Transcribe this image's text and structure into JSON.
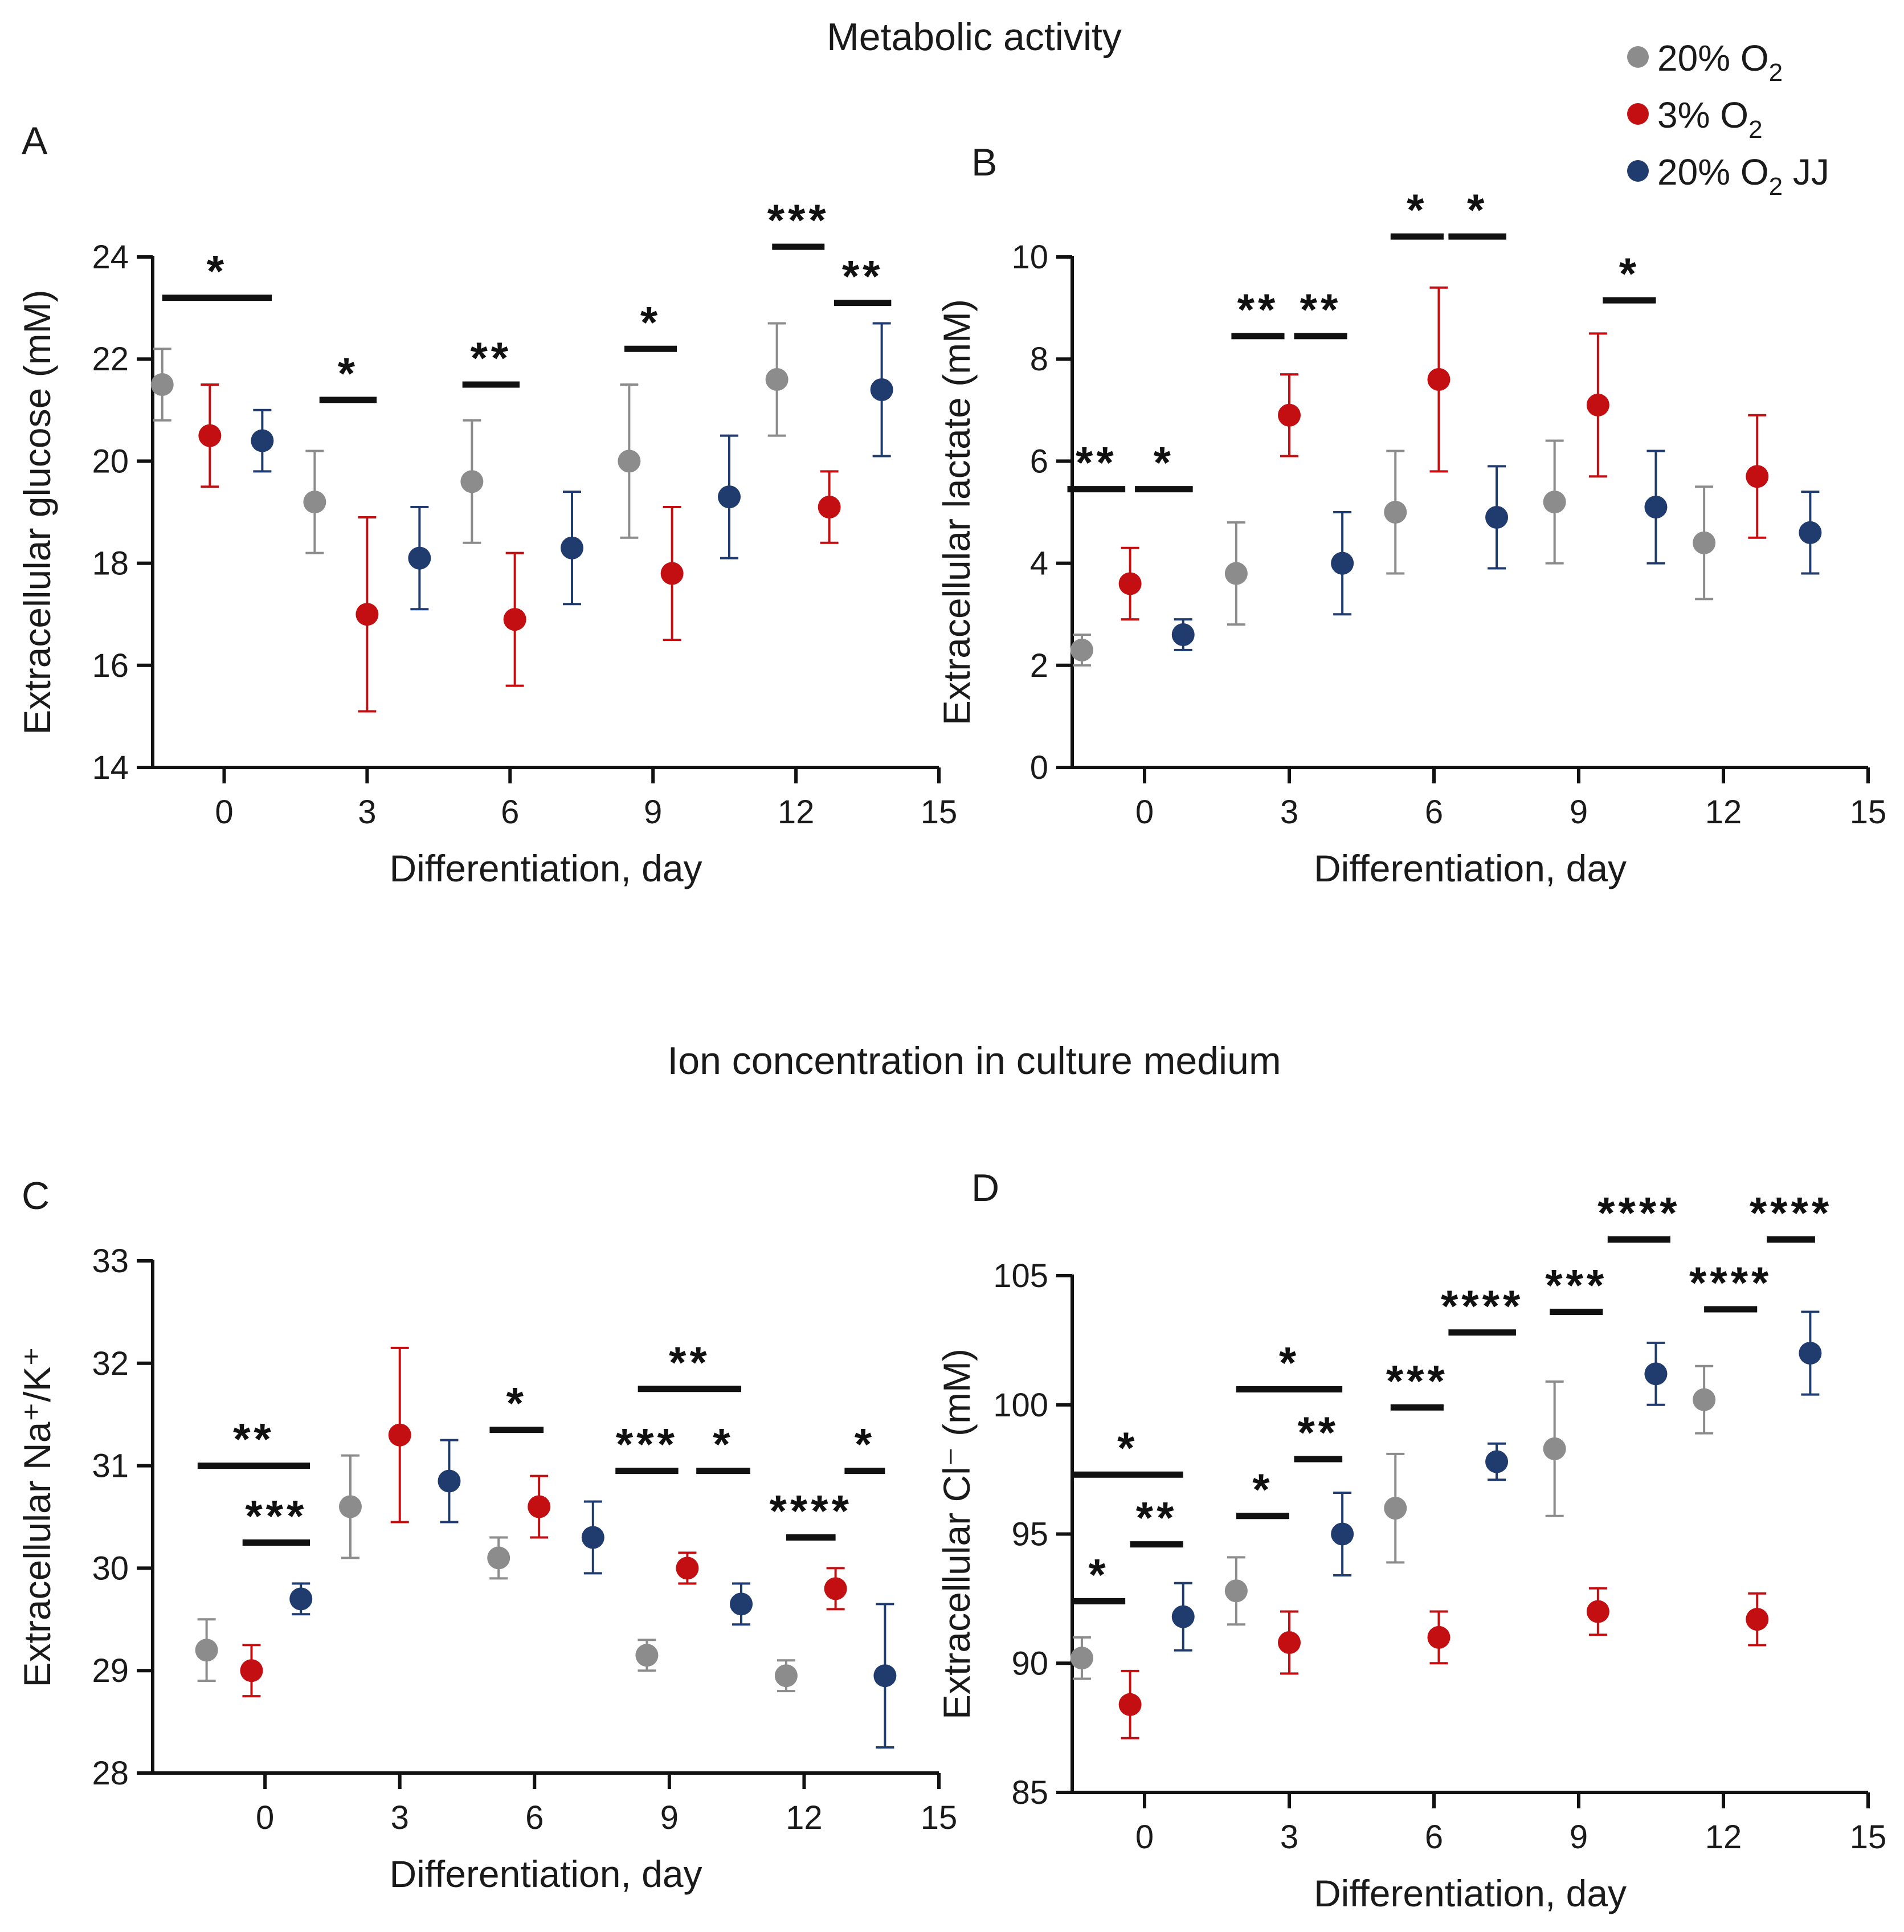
{
  "section_titles": {
    "metabolic": "Metabolic activity",
    "ion": "Ion concentration in culture medium"
  },
  "legend": [
    {
      "label": "20% O",
      "sub": "2",
      "suffix": "",
      "color": "#8c8c8c"
    },
    {
      "label": "3% O",
      "sub": "2",
      "suffix": "",
      "color": "#c40f12"
    },
    {
      "label": "20% O",
      "sub": "2",
      "suffix": " JJ",
      "color": "#203b6e"
    }
  ],
  "chart_data": [
    {
      "type": "scatter",
      "panel": "A",
      "xlabel": "Differentiation, day",
      "ylabel": "Extracellular glucose (mM)",
      "xlim": [
        -1.5,
        15
      ],
      "ylim": [
        14,
        24
      ],
      "xticks": [
        "0",
        "3",
        "6",
        "9",
        "12",
        "15"
      ],
      "yticks": [
        "14",
        "16",
        "18",
        "20",
        "22",
        "24"
      ],
      "series": [
        {
          "name": "20% O2",
          "color": "#8c8c8c",
          "x": [
            -1.3,
            1.9,
            5.2,
            8.5,
            11.6
          ],
          "y": [
            21.5,
            19.2,
            19.6,
            20.0,
            21.6
          ],
          "err": [
            0.7,
            1.0,
            1.2,
            1.5,
            1.1
          ]
        },
        {
          "name": "3% O2",
          "color": "#c40f12",
          "x": [
            -0.3,
            3.0,
            6.1,
            9.4,
            12.7
          ],
          "y": [
            20.5,
            17.0,
            16.9,
            17.8,
            19.1
          ],
          "err": [
            1.0,
            1.9,
            1.3,
            1.3,
            0.7
          ]
        },
        {
          "name": "20% O2 JJ",
          "color": "#203b6e",
          "x": [
            0.8,
            4.1,
            7.3,
            10.6,
            13.8
          ],
          "y": [
            20.4,
            18.1,
            18.3,
            19.3,
            21.4
          ],
          "err": [
            0.6,
            1.0,
            1.1,
            1.2,
            1.3
          ]
        }
      ],
      "significance": [
        {
          "x1": -1.3,
          "x2": 1.0,
          "y": 23.2,
          "label": "*"
        },
        {
          "x1": 2.0,
          "x2": 3.2,
          "y": 21.2,
          "label": "*"
        },
        {
          "x1": 5.0,
          "x2": 6.2,
          "y": 21.5,
          "label": "**"
        },
        {
          "x1": 8.4,
          "x2": 9.5,
          "y": 22.2,
          "label": "*"
        },
        {
          "x1": 11.5,
          "x2": 12.6,
          "y": 24.2,
          "label": "***"
        },
        {
          "x1": 12.8,
          "x2": 14.0,
          "y": 23.1,
          "label": "**"
        }
      ]
    },
    {
      "type": "scatter",
      "panel": "B",
      "xlabel": "Differentiation, day",
      "ylabel": "Extracellular lactate (mM)",
      "xlim": [
        -1.5,
        15
      ],
      "ylim": [
        0,
        10
      ],
      "xticks": [
        "0",
        "3",
        "6",
        "9",
        "12",
        "15"
      ],
      "yticks": [
        "0",
        "2",
        "4",
        "6",
        "8",
        "10"
      ],
      "series": [
        {
          "name": "20% O2",
          "color": "#8c8c8c",
          "x": [
            -1.3,
            1.9,
            5.2,
            8.5,
            11.6
          ],
          "y": [
            2.3,
            3.8,
            5.0,
            5.2,
            4.4
          ],
          "err": [
            0.3,
            1.0,
            1.2,
            1.2,
            1.1
          ]
        },
        {
          "name": "3% O2",
          "color": "#c40f12",
          "x": [
            -0.3,
            3.0,
            6.1,
            9.4,
            12.7
          ],
          "y": [
            3.6,
            6.9,
            7.6,
            7.1,
            5.7
          ],
          "err": [
            0.7,
            0.8,
            1.8,
            1.4,
            1.2
          ]
        },
        {
          "name": "20% O2 JJ",
          "color": "#203b6e",
          "x": [
            0.8,
            4.1,
            7.3,
            10.6,
            13.8
          ],
          "y": [
            2.6,
            4.0,
            4.9,
            5.1,
            4.6
          ],
          "err": [
            0.3,
            1.0,
            1.0,
            1.1,
            0.8
          ]
        }
      ],
      "significance": [
        {
          "x1": -1.6,
          "x2": -0.4,
          "y": 5.45,
          "label": "**"
        },
        {
          "x1": -0.2,
          "x2": 1.0,
          "y": 5.45,
          "label": "*"
        },
        {
          "x1": 1.8,
          "x2": 2.9,
          "y": 8.45,
          "label": "**"
        },
        {
          "x1": 3.1,
          "x2": 4.2,
          "y": 8.45,
          "label": "**"
        },
        {
          "x1": 5.1,
          "x2": 6.2,
          "y": 10.4,
          "label": "*"
        },
        {
          "x1": 6.3,
          "x2": 7.5,
          "y": 10.4,
          "label": "*"
        },
        {
          "x1": 9.5,
          "x2": 10.6,
          "y": 9.15,
          "label": "*"
        }
      ]
    },
    {
      "type": "scatter",
      "panel": "C",
      "xlabel": "Differentiation, day",
      "ylabel": "Extracellular Na⁺/K⁺",
      "xlim": [
        -2.5,
        15
      ],
      "ylim": [
        28,
        33
      ],
      "xticks": [
        "0",
        "3",
        "6",
        "9",
        "12",
        "15"
      ],
      "yticks": [
        "28",
        "29",
        "30",
        "31",
        "32",
        "33"
      ],
      "series": [
        {
          "name": "20% O2",
          "color": "#8c8c8c",
          "x": [
            -1.3,
            1.9,
            5.2,
            8.5,
            11.6
          ],
          "y": [
            29.2,
            30.6,
            30.1,
            29.15,
            28.95
          ],
          "err": [
            0.3,
            0.5,
            0.2,
            0.15,
            0.15
          ]
        },
        {
          "name": "3% O2",
          "color": "#c40f12",
          "x": [
            -0.3,
            3.0,
            6.1,
            9.4,
            12.7
          ],
          "y": [
            29.0,
            31.3,
            30.6,
            30.0,
            29.8
          ],
          "err": [
            0.25,
            0.85,
            0.3,
            0.15,
            0.2
          ]
        },
        {
          "name": "20% O2 JJ",
          "color": "#203b6e",
          "x": [
            0.8,
            4.1,
            7.3,
            10.6,
            13.8
          ],
          "y": [
            29.7,
            30.85,
            30.3,
            29.65,
            28.95
          ],
          "err": [
            0.15,
            0.4,
            0.35,
            0.2,
            0.7
          ]
        }
      ],
      "significance": [
        {
          "x1": -1.5,
          "x2": 1.0,
          "y": 31.0,
          "label": "**"
        },
        {
          "x1": -0.5,
          "x2": 1.0,
          "y": 30.25,
          "label": "***"
        },
        {
          "x1": 5.0,
          "x2": 6.2,
          "y": 31.35,
          "label": "*"
        },
        {
          "x1": 8.3,
          "x2": 10.6,
          "y": 31.75,
          "label": "**"
        },
        {
          "x1": 7.8,
          "x2": 9.2,
          "y": 30.95,
          "label": "***"
        },
        {
          "x1": 9.6,
          "x2": 10.8,
          "y": 30.95,
          "label": "*"
        },
        {
          "x1": 11.6,
          "x2": 12.7,
          "y": 30.3,
          "label": "****"
        },
        {
          "x1": 12.9,
          "x2": 13.8,
          "y": 30.95,
          "label": "*"
        }
      ]
    },
    {
      "type": "scatter",
      "panel": "D",
      "xlabel": "Differentiation, day",
      "ylabel": "Extracellular Cl⁻ (mM)",
      "xlim": [
        -1.5,
        15
      ],
      "ylim": [
        85,
        105
      ],
      "xticks": [
        "0",
        "3",
        "6",
        "9",
        "12",
        "15"
      ],
      "yticks": [
        "85",
        "90",
        "95",
        "100",
        "105"
      ],
      "series": [
        {
          "name": "20% O2",
          "color": "#8c8c8c",
          "x": [
            -1.3,
            1.9,
            5.2,
            8.5,
            11.6
          ],
          "y": [
            90.2,
            92.8,
            96.0,
            98.3,
            100.2
          ],
          "err": [
            0.8,
            1.3,
            2.1,
            2.6,
            1.3
          ]
        },
        {
          "name": "3% O2",
          "color": "#c40f12",
          "x": [
            -0.3,
            3.0,
            6.1,
            9.4,
            12.7
          ],
          "y": [
            88.4,
            90.8,
            91.0,
            92.0,
            91.7
          ],
          "err": [
            1.3,
            1.2,
            1.0,
            0.9,
            1.0
          ]
        },
        {
          "name": "20% O2 JJ",
          "color": "#203b6e",
          "x": [
            0.8,
            4.1,
            7.3,
            10.6,
            13.8
          ],
          "y": [
            91.8,
            95.0,
            97.8,
            101.2,
            102.0
          ],
          "err": [
            1.3,
            1.6,
            0.7,
            1.2,
            1.6
          ]
        }
      ],
      "significance": [
        {
          "x1": -1.5,
          "x2": -0.4,
          "y": 92.4,
          "label": "*"
        },
        {
          "x1": -0.3,
          "x2": 0.8,
          "y": 94.6,
          "label": "**"
        },
        {
          "x1": -1.5,
          "x2": 0.8,
          "y": 97.3,
          "label": "*"
        },
        {
          "x1": 1.9,
          "x2": 3.0,
          "y": 95.7,
          "label": "*"
        },
        {
          "x1": 3.1,
          "x2": 4.1,
          "y": 97.9,
          "label": "**"
        },
        {
          "x1": 1.9,
          "x2": 4.1,
          "y": 100.6,
          "label": "*"
        },
        {
          "x1": 5.1,
          "x2": 6.2,
          "y": 99.9,
          "label": "***"
        },
        {
          "x1": 6.3,
          "x2": 7.7,
          "y": 102.8,
          "label": "****"
        },
        {
          "x1": 8.4,
          "x2": 9.5,
          "y": 103.6,
          "label": "***"
        },
        {
          "x1": 9.6,
          "x2": 10.9,
          "y": 106.4,
          "label": "****"
        },
        {
          "x1": 11.6,
          "x2": 12.7,
          "y": 103.7,
          "label": "****"
        },
        {
          "x1": 12.9,
          "x2": 13.9,
          "y": 106.4,
          "label": "****"
        }
      ]
    }
  ]
}
